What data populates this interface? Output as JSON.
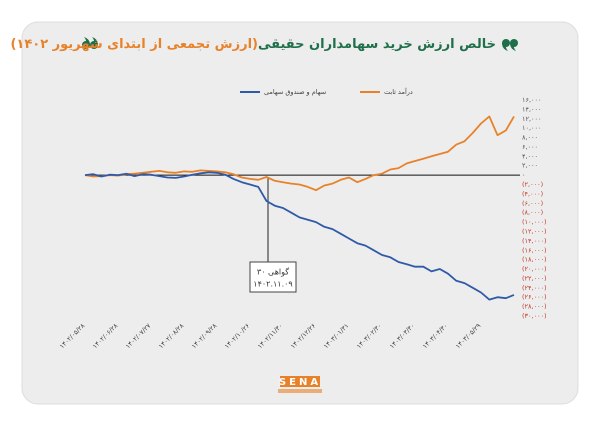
{
  "chart_data": {
    "type": "line",
    "title": "خالص ارزش خرید سهامداران حقیقی",
    "subtitle": "(ارزش تجمعی از ابتدای شهریور ۱۴۰۲)",
    "title_color": "#1f6f4a",
    "subtitle_color": "#e8822a",
    "categories": [
      "۱۴۰۲/۰۵/۲۸",
      null,
      null,
      null,
      "۱۴۰۲/۰۶/۲۸",
      null,
      null,
      null,
      "۱۴۰۲/۰۷/۲۷",
      null,
      null,
      null,
      "۱۴۰۲/۰۸/۲۸",
      null,
      null,
      null,
      "۱۴۰۲/۰۹/۲۸",
      null,
      null,
      null,
      "۱۴۰۲/۱۰/۲۶",
      null,
      null,
      null,
      "۱۴۰۲/۱۱/۳۰",
      null,
      null,
      null,
      "۱۴۰۲/۱۲/۲۶",
      null,
      null,
      null,
      "۱۴۰۳/۰۱/۳۱",
      null,
      null,
      null,
      "۱۴۰۳/۰۲/۳۰",
      null,
      null,
      null,
      "۱۴۰۳/۰۳/۳۰",
      null,
      null,
      null,
      "۱۴۰۳/۰۴/۳۰",
      null,
      null,
      null,
      "۱۴۰۳/۰۵/۲۹",
      null,
      null,
      null,
      null
    ],
    "series": [
      {
        "name": "سهام و صندوق سهامی",
        "color": "#2f5aa8",
        "values": [
          0,
          200,
          -300,
          100,
          0,
          300,
          -200,
          200,
          100,
          -200,
          -500,
          -600,
          -300,
          100,
          400,
          600,
          500,
          100,
          -800,
          -1500,
          -2000,
          -2500,
          -5500,
          -6500,
          -7000,
          -8000,
          -9000,
          -9500,
          -10000,
          -11000,
          -11500,
          -12500,
          -13500,
          -14500,
          -15000,
          -16000,
          -17000,
          -17500,
          -18500,
          -19000,
          -19500,
          -19500,
          -20500,
          -20000,
          -21000,
          -22500,
          -23000,
          -24000,
          -25000,
          -26500,
          -26000,
          -26200,
          -25500
        ]
      },
      {
        "name": "درآمد ثابت",
        "color": "#e8822a",
        "values": [
          0,
          -300,
          -200,
          0,
          -100,
          200,
          300,
          500,
          700,
          900,
          600,
          500,
          800,
          700,
          1000,
          900,
          800,
          600,
          200,
          -500,
          -800,
          -1000,
          -400,
          -1200,
          -1500,
          -1800,
          -2000,
          -2500,
          -3200,
          -2200,
          -1800,
          -1000,
          -500,
          -1500,
          -800,
          0,
          300,
          1200,
          1500,
          2500,
          3000,
          3500,
          4000,
          4500,
          5000,
          6500,
          7200,
          9000,
          11000,
          12500,
          8500,
          9500,
          12500
        ]
      }
    ],
    "ylim": [
      -30000,
      16000
    ],
    "yticks": [
      {
        "value": 16000,
        "label": "۱۶,۰۰۰"
      },
      {
        "value": 14000,
        "label": "۱۴,۰۰۰"
      },
      {
        "value": 12000,
        "label": "۱۲,۰۰۰"
      },
      {
        "value": 10000,
        "label": "۱۰,۰۰۰"
      },
      {
        "value": 8000,
        "label": "۸,۰۰۰"
      },
      {
        "value": 6000,
        "label": "۶,۰۰۰"
      },
      {
        "value": 4000,
        "label": "۴,۰۰۰"
      },
      {
        "value": 2000,
        "label": "۲,۰۰۰"
      },
      {
        "value": 0,
        "label": "۰"
      },
      {
        "value": -2000,
        "label": "(۲,۰۰۰)"
      },
      {
        "value": -4000,
        "label": "(۴,۰۰۰)"
      },
      {
        "value": -6000,
        "label": "(۶,۰۰۰)"
      },
      {
        "value": -8000,
        "label": "(۸,۰۰۰)"
      },
      {
        "value": -10000,
        "label": "(۱۰,۰۰۰)"
      },
      {
        "value": -12000,
        "label": "(۱۲,۰۰۰)"
      },
      {
        "value": -14000,
        "label": "(۱۴,۰۰۰)"
      },
      {
        "value": -16000,
        "label": "(۱۶,۰۰۰)"
      },
      {
        "value": -18000,
        "label": "(۱۸,۰۰۰)"
      },
      {
        "value": -20000,
        "label": "(۲۰,۰۰۰)"
      },
      {
        "value": -22000,
        "label": "(۲۲,۰۰۰)"
      },
      {
        "value": -24000,
        "label": "(۲۴,۰۰۰)"
      },
      {
        "value": -26000,
        "label": "(۲۶,۰۰۰)"
      },
      {
        "value": -28000,
        "label": "(۲۸,۰۰۰)"
      },
      {
        "value": -30000,
        "label": "(۳۰,۰۰۰)"
      }
    ],
    "positive_tick_color": "#555555",
    "negative_tick_color": "#c0392b",
    "zero_line": true,
    "legend": "top",
    "annotation": [
      "گواهی ۳۰",
      "۱۴۰۲.۱۱.۰۹"
    ],
    "logo": "SENA"
  }
}
